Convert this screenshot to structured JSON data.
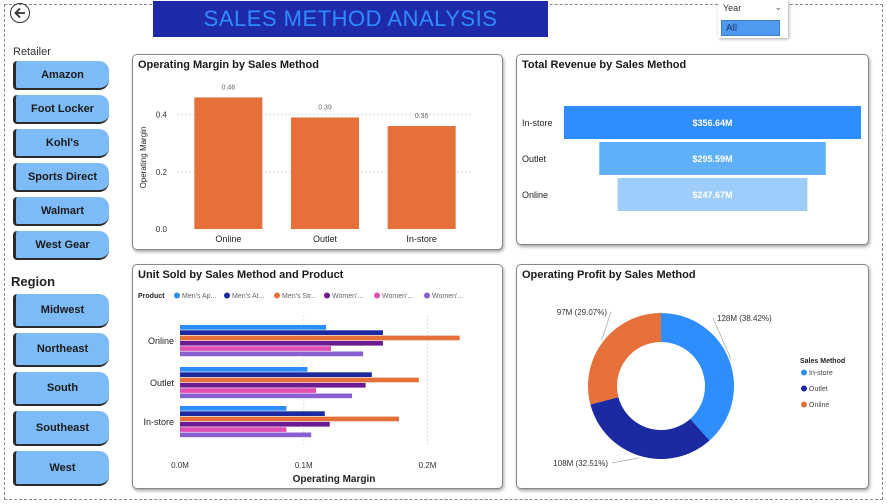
{
  "header": {
    "title": "SALES METHOD ANALYSIS"
  },
  "year_slicer": {
    "label": "Year",
    "selected": "All"
  },
  "retailer": {
    "title": "Retailer",
    "items": [
      "Amazon",
      "Foot Locker",
      "Kohl's",
      "Sports Direct",
      "Walmart",
      "West Gear"
    ]
  },
  "region": {
    "title": "Region",
    "items": [
      "Midwest",
      "Northeast",
      "South",
      "Southeast",
      "West"
    ]
  },
  "colors": {
    "orange": "#e6703a",
    "navy": "#1b2aa0",
    "blue": "#2f8eff",
    "blue_mid": "#5fb0f8",
    "blue_light": "#9fcdfb",
    "pink": "#e04fb4",
    "purple": "#8a5fd2",
    "dark_purple": "#6b1a8f",
    "banner": "#1f2aa8",
    "slicer_button": "#7cbbf7"
  },
  "chart_data": [
    {
      "id": "operating-margin",
      "type": "bar",
      "title": "Operating Margin by Sales Method",
      "ylabel": "Operating Margin",
      "xlabel": "",
      "categories": [
        "Online",
        "Outlet",
        "In-store"
      ],
      "values": [
        0.46,
        0.39,
        0.36
      ],
      "data_labels": [
        "0.46",
        "0.39",
        "0.36"
      ],
      "ylim": [
        0,
        0.5
      ],
      "yticks": [
        0.0,
        0.2,
        0.4
      ],
      "ytick_labels": [
        "0.0",
        "0.2",
        "0.4"
      ],
      "color": "#e6703a"
    },
    {
      "id": "total-revenue",
      "type": "bar",
      "orientation": "funnel",
      "title": "Total Revenue by Sales Method",
      "categories": [
        "In-store",
        "Outlet",
        "Online"
      ],
      "values": [
        356.64,
        295.59,
        247.67
      ],
      "value_labels": [
        "$356.64M",
        "$295.59M",
        "$247.67M"
      ],
      "colors": [
        "#2f8eff",
        "#5fb0f8",
        "#9fcdfb"
      ]
    },
    {
      "id": "unit-sold",
      "type": "bar",
      "orientation": "horizontal",
      "title": "Unit Sold by Sales Method and Product",
      "xlabel": "Operating Margin",
      "legend_title": "Product",
      "categories": [
        "Online",
        "Outlet",
        "In-store"
      ],
      "xlim": [
        0,
        0.24
      ],
      "xticks": [
        0,
        0.1,
        0.2
      ],
      "xtick_labels": [
        "0.0M",
        "0.1M",
        "0.2M"
      ],
      "series": [
        {
          "name": "Men's Ap...",
          "color": "#2f8eff",
          "values": [
            0.118,
            0.103,
            0.086
          ]
        },
        {
          "name": "Men's At...",
          "color": "#1b2aa0",
          "values": [
            0.164,
            0.155,
            0.117
          ]
        },
        {
          "name": "Men's Str...",
          "color": "#e6703a",
          "values": [
            0.226,
            0.193,
            0.177
          ]
        },
        {
          "name": "Women'...",
          "color": "#6b1a8f",
          "values": [
            0.164,
            0.15,
            0.121
          ]
        },
        {
          "name": "Women'...",
          "color": "#e04fb4",
          "values": [
            0.122,
            0.11,
            0.086
          ]
        },
        {
          "name": "Women'...",
          "color": "#8a5fd2",
          "values": [
            0.148,
            0.139,
            0.106
          ]
        }
      ]
    },
    {
      "id": "operating-profit",
      "type": "pie",
      "donut": true,
      "title": "Operating Profit by Sales Method",
      "legend_title": "Sales Method",
      "slices": [
        {
          "name": "In-store",
          "value": 38.42,
          "label": "128M (38.42%)",
          "color": "#2f8eff"
        },
        {
          "name": "Outlet",
          "value": 32.51,
          "label": "108M (32.51%)",
          "color": "#1b2aa0"
        },
        {
          "name": "Online",
          "value": 29.07,
          "label": "97M (29.07%)",
          "color": "#e6703a"
        }
      ]
    }
  ]
}
